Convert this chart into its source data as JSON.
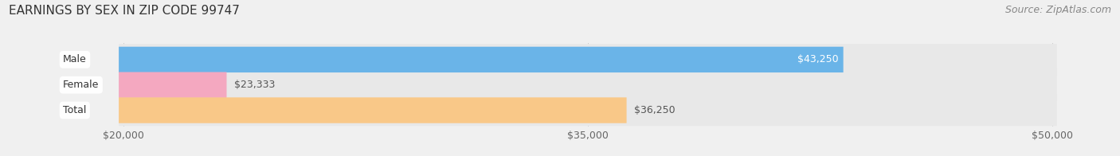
{
  "title": "EARNINGS BY SEX IN ZIP CODE 99747",
  "source": "Source: ZipAtlas.com",
  "categories": [
    "Male",
    "Female",
    "Total"
  ],
  "values": [
    43250,
    23333,
    36250
  ],
  "bar_colors": [
    "#6ab4e8",
    "#f4a8c0",
    "#f9c888"
  ],
  "bar_labels": [
    "$43,250",
    "$23,333",
    "$36,250"
  ],
  "label_inside": [
    true,
    false,
    false
  ],
  "xmin": 20000,
  "xmax": 50000,
  "xticks": [
    20000,
    35000,
    50000
  ],
  "xtick_labels": [
    "$20,000",
    "$35,000",
    "$50,000"
  ],
  "background_color": "#f0f0f0",
  "bar_bg_color": "#e8e8e8",
  "title_fontsize": 11,
  "source_fontsize": 9,
  "tick_fontsize": 9,
  "bar_height": 0.62,
  "bar_label_fontsize": 9,
  "cat_label_fontsize": 9
}
